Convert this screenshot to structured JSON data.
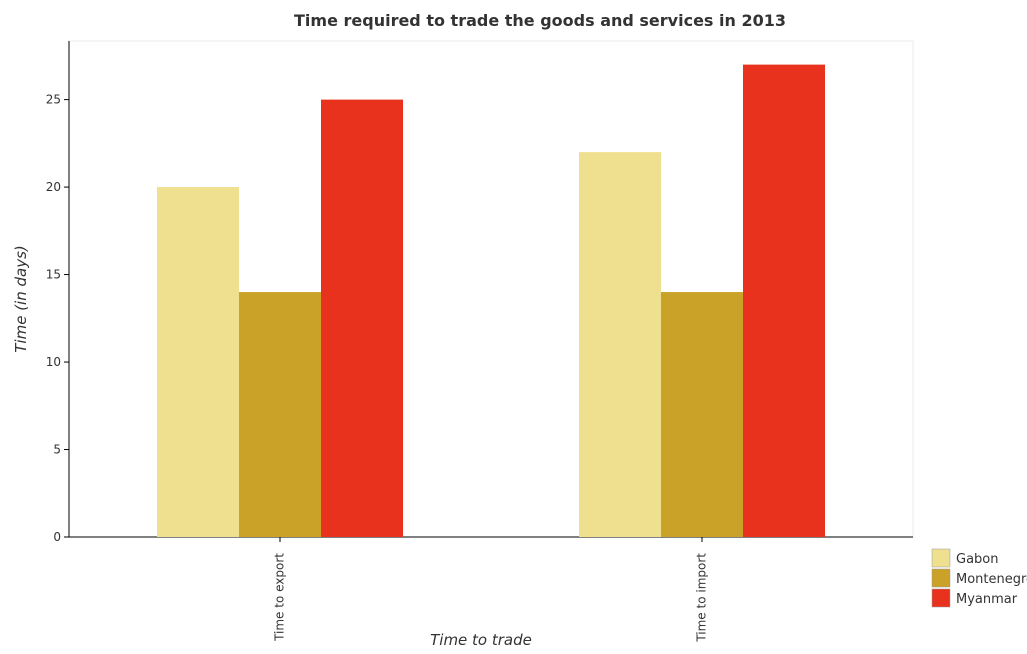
{
  "chart_data": {
    "type": "bar",
    "title": "Time required to trade the goods and services in 2013",
    "xlabel": "Time to trade",
    "ylabel": "Time (in days)",
    "categories": [
      "Time to export",
      "Time to import"
    ],
    "series": [
      {
        "name": "Gabon",
        "values": [
          20,
          22
        ],
        "color": "#eee08f"
      },
      {
        "name": "Montenegro",
        "values": [
          14,
          14
        ],
        "color": "#c9a227"
      },
      {
        "name": "Myanmar",
        "values": [
          25,
          27
        ],
        "color": "#e8321e"
      }
    ],
    "ylim": [
      0,
      28.35
    ],
    "yticks": [
      0,
      5,
      10,
      15,
      20,
      25
    ],
    "grid": false,
    "legend_position": "bottom-right"
  }
}
